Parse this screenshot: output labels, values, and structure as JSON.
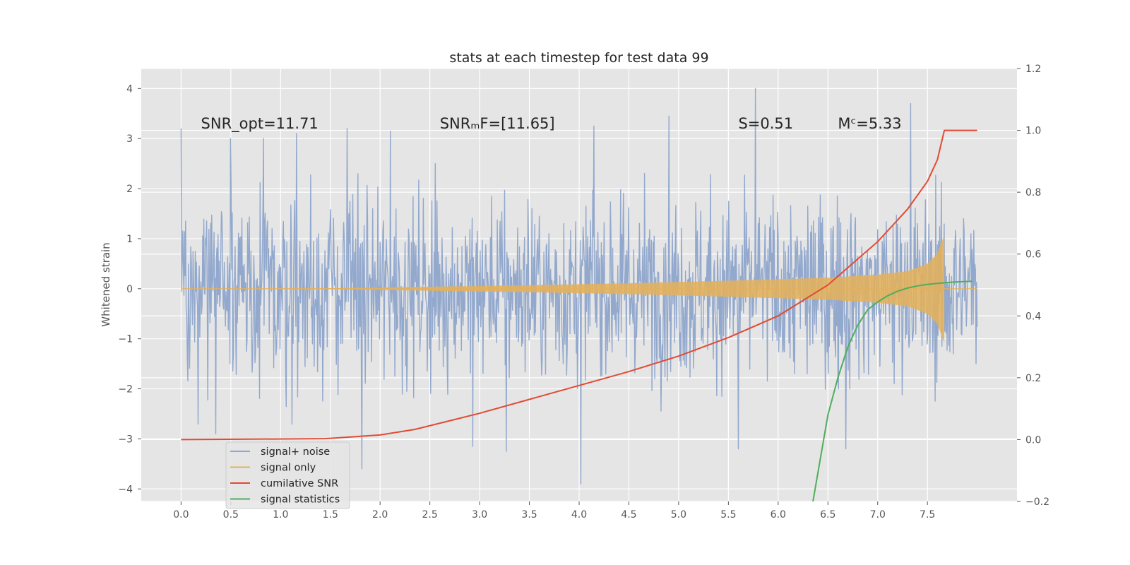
{
  "chart_data": {
    "type": "line",
    "title": "stats at each timestep for test data 99",
    "xlabel": "",
    "ylabel": "Whitened strain",
    "y2label": "",
    "xlim": [
      -0.4,
      8.4
    ],
    "ylim": [
      -4.25,
      4.4
    ],
    "y2lim": [
      -0.2,
      1.2
    ],
    "xticks": [
      "0.0",
      "0.5",
      "1.0",
      "1.5",
      "2.0",
      "2.5",
      "3.0",
      "3.5",
      "4.0",
      "4.5",
      "5.0",
      "5.5",
      "6.0",
      "6.5",
      "7.0",
      "7.5"
    ],
    "xtick_values": [
      0,
      0.5,
      1,
      1.5,
      2,
      2.5,
      3,
      3.5,
      4,
      4.5,
      5,
      5.5,
      6,
      6.5,
      7,
      7.5
    ],
    "yticks": [
      "4",
      "3",
      "2",
      "1",
      "0",
      "−1",
      "−2",
      "−3",
      "−4"
    ],
    "ytick_values": [
      4,
      3,
      2,
      1,
      0,
      -1,
      -2,
      -3,
      -4
    ],
    "y2ticks": [
      "1.2",
      "1.0",
      "0.8",
      "0.6",
      "0.4",
      "0.2",
      "0.0",
      "−0.2"
    ],
    "y2tick_values": [
      1.2,
      1.0,
      0.8,
      0.6,
      0.4,
      0.2,
      0.0,
      -0.2
    ],
    "grid": true,
    "legend_position": "lower-left",
    "annotations": [
      {
        "id": "snr_opt",
        "text": "SNR_opt=11.71",
        "x": 0.2,
        "y": 3.2
      },
      {
        "id": "snr_mf",
        "text": "SNRₘF=[11.65]",
        "x": 2.6,
        "y": 3.2
      },
      {
        "id": "s_stat",
        "text": "S=0.51",
        "x": 5.6,
        "y": 3.2
      },
      {
        "id": "mchirp",
        "text": "Mᶜ=5.33",
        "x": 6.6,
        "y": 3.2
      }
    ],
    "series": [
      {
        "name": "signal+ noise",
        "color": "#92a8cd",
        "axis": "left",
        "style": "noise",
        "x_range": [
          0,
          8.0
        ],
        "samples": 1400,
        "std": 0.9,
        "spikes": [
          {
            "x": 0.0,
            "y": 3.2
          },
          {
            "x": 0.5,
            "y": 3.0
          },
          {
            "x": 0.83,
            "y": 3.0
          },
          {
            "x": 1.16,
            "y": 3.1
          },
          {
            "x": 1.67,
            "y": 3.2
          },
          {
            "x": 2.1,
            "y": 3.15
          },
          {
            "x": 4.15,
            "y": 3.25
          },
          {
            "x": 4.9,
            "y": 3.45
          },
          {
            "x": 5.77,
            "y": 4.0
          },
          {
            "x": 7.33,
            "y": 3.7
          },
          {
            "x": 0.35,
            "y": -2.9
          },
          {
            "x": 1.82,
            "y": -3.6
          },
          {
            "x": 2.93,
            "y": -3.15
          },
          {
            "x": 3.27,
            "y": -3.25
          },
          {
            "x": 4.02,
            "y": -3.9
          },
          {
            "x": 5.6,
            "y": -3.2
          },
          {
            "x": 6.68,
            "y": -3.2
          }
        ]
      },
      {
        "name": "signal only",
        "color": "#e3b05c",
        "axis": "left",
        "style": "chirp",
        "x_range": [
          0,
          7.67
        ],
        "envelope": [
          [
            0,
            0.0
          ],
          [
            1.5,
            0.01
          ],
          [
            2.5,
            0.04
          ],
          [
            3.5,
            0.07
          ],
          [
            4.5,
            0.11
          ],
          [
            5.5,
            0.16
          ],
          [
            6.5,
            0.22
          ],
          [
            7.0,
            0.28
          ],
          [
            7.3,
            0.35
          ],
          [
            7.5,
            0.5
          ],
          [
            7.6,
            0.7
          ],
          [
            7.67,
            1.08
          ]
        ]
      },
      {
        "name": "cumilative SNR",
        "color": "#e24a33",
        "axis": "right",
        "x": [
          0,
          1.0,
          1.45,
          2.0,
          2.35,
          3.0,
          3.5,
          4.0,
          4.5,
          5.0,
          5.5,
          6.0,
          6.5,
          7.0,
          7.3,
          7.5,
          7.6,
          7.67,
          8.0
        ],
        "values": [
          0.0,
          0.002,
          0.003,
          0.015,
          0.033,
          0.085,
          0.13,
          0.175,
          0.22,
          0.27,
          0.33,
          0.4,
          0.5,
          0.64,
          0.745,
          0.835,
          0.905,
          1.0,
          1.0
        ]
      },
      {
        "name": "signal statistics",
        "color": "#4eae5b",
        "axis": "right",
        "x": [
          6.35,
          6.5,
          6.6,
          6.7,
          6.8,
          6.9,
          7.0,
          7.1,
          7.2,
          7.3,
          7.4,
          7.5,
          7.6,
          7.7,
          7.8,
          7.95
        ],
        "values": [
          -0.2,
          0.08,
          0.2,
          0.3,
          0.37,
          0.42,
          0.445,
          0.465,
          0.48,
          0.49,
          0.497,
          0.502,
          0.505,
          0.508,
          0.51,
          0.512
        ]
      }
    ]
  }
}
